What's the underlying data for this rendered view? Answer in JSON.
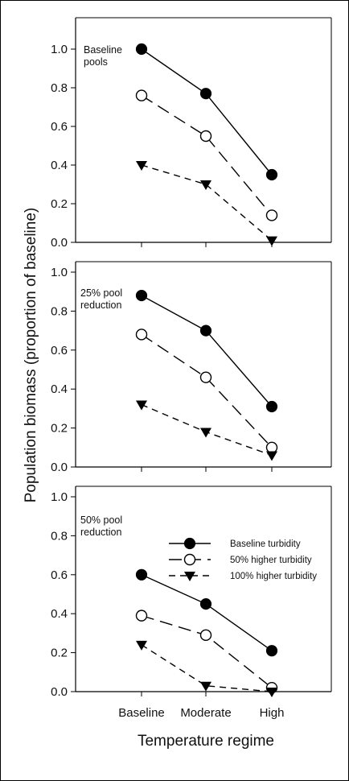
{
  "chart_data": {
    "type": "line",
    "categories": [
      "Baseline",
      "Moderate",
      "High"
    ],
    "xlabel": "Temperature regime",
    "ylabel": "Population biomass (proportion of baseline)",
    "ylim": [
      0,
      1.0
    ],
    "yticks": [
      "0.0",
      "0.2",
      "0.4",
      "0.6",
      "0.8",
      "1.0"
    ],
    "grid": false,
    "legend": {
      "placement": "inside-bottom-panel-top-right",
      "entries": [
        "Baseline turbidity",
        "50% higher turbidity",
        "100% higher turbidity"
      ]
    },
    "series_styles": [
      {
        "name": "Baseline turbidity",
        "line": "solid",
        "marker": "filled-circle",
        "color": "#000000"
      },
      {
        "name": "50% higher turbidity",
        "line": "long-dash",
        "marker": "open-circle",
        "color": "#000000"
      },
      {
        "name": "100% higher turbidity",
        "line": "short-dash",
        "marker": "filled-triangle-down",
        "color": "#000000"
      }
    ],
    "panels": [
      {
        "annotation": [
          "Baseline",
          "pools"
        ],
        "series": [
          {
            "name": "Baseline turbidity",
            "values": [
              1.0,
              0.77,
              0.35
            ]
          },
          {
            "name": "50% higher turbidity",
            "values": [
              0.76,
              0.55,
              0.14
            ]
          },
          {
            "name": "100% higher turbidity",
            "values": [
              0.4,
              0.3,
              0.01
            ]
          }
        ]
      },
      {
        "annotation": [
          "25% pool",
          "reduction"
        ],
        "series": [
          {
            "name": "Baseline turbidity",
            "values": [
              0.88,
              0.7,
              0.31
            ]
          },
          {
            "name": "50% higher turbidity",
            "values": [
              0.68,
              0.46,
              0.1
            ]
          },
          {
            "name": "100% higher turbidity",
            "values": [
              0.32,
              0.18,
              0.06
            ]
          }
        ]
      },
      {
        "annotation": [
          "50% pool",
          "reduction"
        ],
        "series": [
          {
            "name": "Baseline turbidity",
            "values": [
              0.6,
              0.45,
              0.21
            ]
          },
          {
            "name": "50% higher turbidity",
            "values": [
              0.39,
              0.29,
              0.02
            ]
          },
          {
            "name": "100% higher turbidity",
            "values": [
              0.24,
              0.03,
              0.0
            ]
          }
        ]
      }
    ]
  }
}
